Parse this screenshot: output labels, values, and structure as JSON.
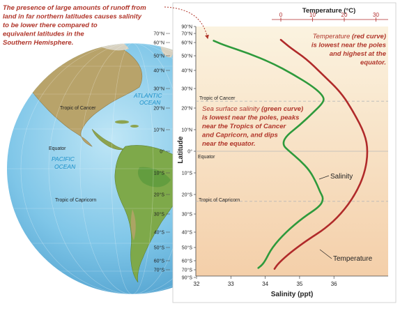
{
  "annotations": {
    "runoff_lines": [
      "The presence of large amounts of runoff from",
      "land in far northern latitudes causes salinity",
      "to be lower there compared to",
      "equivalent latitudes in the",
      "Southern Hemisphere."
    ],
    "temperature_lines": [
      {
        "bold_prefix": "",
        "bold": "",
        "text": "Temperature "
      },
      {
        "bold": "(red curve)",
        "text": ""
      },
      {
        "text": "is lowest near the poles"
      },
      {
        "text": "and highest at the"
      },
      {
        "text": "equator."
      }
    ],
    "temperature_note": [
      "Temperature (red curve)",
      "is lowest near the poles",
      "and highest at the",
      "equator."
    ],
    "salinity_note": [
      "Sea surface salinity (green curve)",
      "is lowest near the poles, peaks",
      "near the Tropics of Cancer",
      "and Capricorn, and dips",
      "near the equator."
    ]
  },
  "globe": {
    "atlantic_label": [
      "ATLANTIC",
      "OCEAN"
    ],
    "pacific_label": [
      "PACIFIC",
      "OCEAN"
    ],
    "equator_label": "Equator",
    "cancer_label": "Tropic of Cancer",
    "capricorn_label": "Tropic of Capricorn"
  },
  "chart_labels": {
    "cancer": "Tropic of Cancer",
    "equator": "Equator",
    "capricorn": "Tropic of Capricorn",
    "salinity_curve_label": "Salinity",
    "temperature_curve_label": "Temperature"
  },
  "colors": {
    "salinity": "#2e9a3c",
    "temperature": "#b02a2a",
    "annotation": "#b0352a",
    "ocean_blue": "#1a8fc8",
    "panel_bg_top": "#fbf2dd",
    "panel_bg_bottom": "#f3c9a2"
  },
  "chart_data": {
    "type": "line",
    "orientation": "vertical-latitude",
    "y_axis": {
      "label": "Latitude",
      "ticks": [
        "90°N",
        "70°N",
        "60°N",
        "50°N",
        "40°N",
        "30°N",
        "20°N",
        "10°N",
        "0°",
        "10°S",
        "20°S",
        "30°S",
        "40°S",
        "50°S",
        "60°S",
        "70°S",
        "90°S"
      ],
      "range": [
        -90,
        90
      ]
    },
    "x_axis_bottom": {
      "label": "Salinity (ppt)",
      "ticks": [
        "32",
        "33",
        "34",
        "35",
        "36"
      ],
      "range": [
        32,
        37.2
      ]
    },
    "x_axis_top": {
      "label": "Temperature (°C)",
      "ticks": [
        "0",
        "10",
        "20",
        "30"
      ],
      "range": [
        -4.6,
        31
      ]
    },
    "global_tick_labels": [
      "70°N",
      "60°N",
      "50°N",
      "40°N",
      "30°N",
      "20°N",
      "10°N",
      "0°",
      "10°S",
      "20°S",
      "30°S",
      "40°S",
      "50°S",
      "60°S",
      "70°S"
    ],
    "series": [
      {
        "name": "Salinity",
        "axis": "bottom",
        "lat": [
          62,
          58,
          52,
          45,
          38,
          31,
          26,
          23,
          18,
          12,
          7,
          3,
          0,
          -4,
          -9,
          -15,
          -19,
          -22,
          -26,
          -32,
          -40,
          -50,
          -60,
          -65,
          -68
        ],
        "value": [
          32.5,
          32.8,
          33.5,
          34.2,
          34.8,
          35.4,
          35.7,
          35.7,
          35.4,
          35.0,
          34.6,
          34.5,
          34.7,
          35.0,
          35.3,
          35.5,
          35.6,
          35.7,
          35.6,
          35.1,
          34.6,
          34.2,
          34.0,
          33.9,
          33.8
        ]
      },
      {
        "name": "Temperature",
        "axis": "top",
        "lat": [
          63,
          56,
          48,
          38,
          28,
          18,
          8,
          0,
          -10,
          -20,
          -30,
          -38,
          -45,
          -52,
          -58,
          -64,
          -69
        ],
        "value": [
          0,
          3,
          8,
          13,
          19,
          23,
          26.5,
          27.5,
          26.5,
          23.5,
          19,
          14,
          8.5,
          4,
          1,
          -1,
          -2
        ]
      }
    ]
  }
}
